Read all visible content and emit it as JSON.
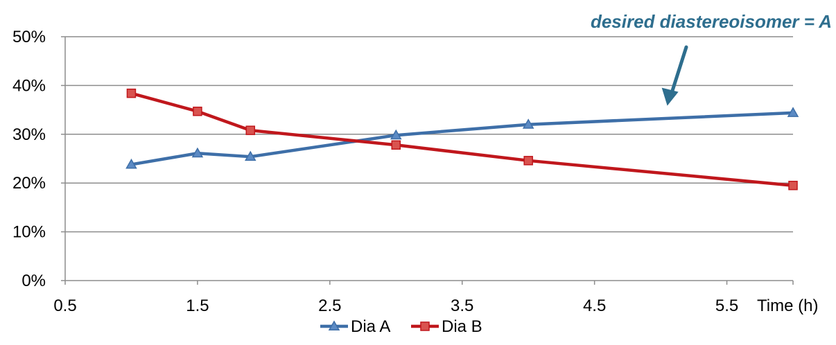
{
  "chart_data": {
    "type": "line",
    "x": [
      1,
      1.5,
      1.9,
      3,
      4,
      6
    ],
    "series": [
      {
        "name": "Dia A",
        "values": [
          23.8,
          26.1,
          25.4,
          29.8,
          32.0,
          34.4
        ],
        "color": "#3E6FA8",
        "marker": "triangle"
      },
      {
        "name": "Dia B",
        "values": [
          38.4,
          34.7,
          30.8,
          27.8,
          24.6,
          19.5
        ],
        "color": "#C0171C",
        "marker": "square"
      }
    ],
    "xticks": [
      0.5,
      1.5,
      2.5,
      3.5,
      4.5,
      5.5
    ],
    "xtick_labels": [
      "0.5",
      "1.5",
      "2.5",
      "3.5",
      "4.5",
      "5.5"
    ],
    "yticks": [
      0,
      10,
      20,
      30,
      40,
      50
    ],
    "ytick_labels": [
      "0%",
      "10%",
      "20%",
      "30%",
      "40%",
      "50%"
    ],
    "xlim": [
      0.5,
      6
    ],
    "ylim": [
      0,
      50
    ],
    "xlabel": "Time (h)",
    "ylabel": "",
    "title": "",
    "grid": "horizontal",
    "legend": "bottom",
    "annotation": {
      "text": "desired diastereoisomer = A",
      "color": "#2E6E8E",
      "points_to": {
        "x": 5.05,
        "y": 35
      }
    }
  }
}
